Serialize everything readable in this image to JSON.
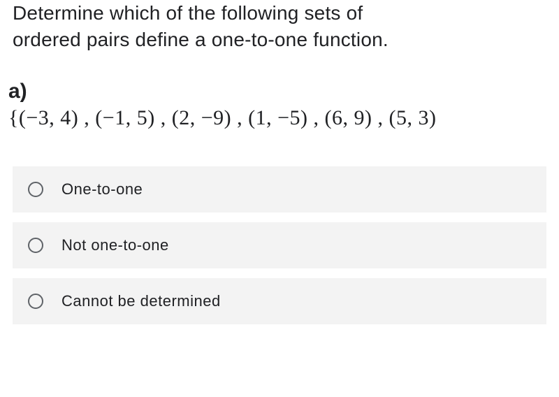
{
  "question": {
    "prompt_line1": "Determine which of the following sets of",
    "prompt_line2": "ordered pairs define a one-to-one function.",
    "part_label": "a)",
    "math_expression": "{(−3, 4) , (−1, 5) , (2, −9) , (1, −5) , (6, 9) , (5, 3)"
  },
  "options": [
    {
      "label": "One-to-one"
    },
    {
      "label": "Not one-to-one"
    },
    {
      "label": "Cannot be determined"
    }
  ],
  "styles": {
    "background_color": "#ffffff",
    "text_color": "#202124",
    "option_bg": "#f3f3f3",
    "radio_border": "#5f6368",
    "question_fontsize": 28,
    "part_label_fontsize": 30,
    "math_fontsize": 30,
    "option_label_fontsize": 22
  }
}
